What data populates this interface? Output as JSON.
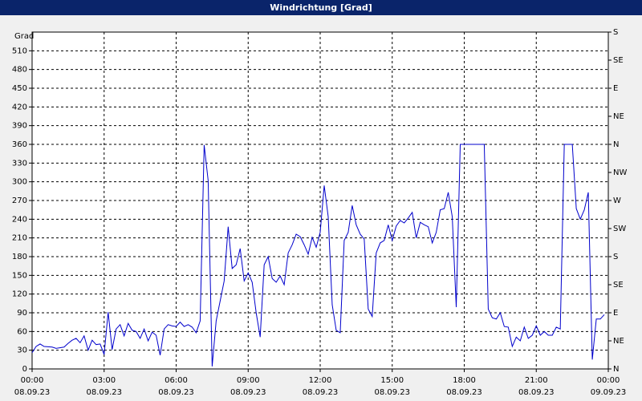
{
  "chart_data": {
    "type": "line",
    "title": "Windrichtung [Grad]",
    "y_label": "Grad",
    "color": "#0000cc",
    "grid": true,
    "x": [
      0,
      10,
      20,
      30,
      50,
      60,
      80,
      90,
      100,
      110,
      120,
      130,
      140,
      150,
      160,
      170,
      180,
      190,
      200,
      210,
      220,
      230,
      240,
      250,
      260,
      270,
      280,
      290,
      300,
      310,
      320,
      330,
      340,
      350,
      360,
      370,
      380,
      390,
      400,
      410,
      420,
      430,
      440,
      450,
      460,
      470,
      480,
      490,
      500,
      510,
      520,
      530,
      540,
      550,
      560,
      570,
      580,
      590,
      600,
      610,
      620,
      630,
      640,
      650,
      660,
      670,
      680,
      690,
      700,
      710,
      720,
      730,
      740,
      750,
      760,
      770,
      780,
      790,
      800,
      810,
      820,
      830,
      840,
      850,
      860,
      870,
      880,
      890,
      900,
      910,
      920,
      930,
      940,
      950,
      960,
      970,
      980,
      990,
      1000,
      1010,
      1020,
      1030,
      1040,
      1050,
      1060,
      1070,
      1120,
      1130,
      1140,
      1150,
      1160,
      1170,
      1180,
      1190,
      1200,
      1210,
      1220,
      1230,
      1240,
      1250,
      1260,
      1270,
      1280,
      1290,
      1300,
      1310,
      1320,
      1330,
      1350,
      1360,
      1370,
      1380,
      1390,
      1400,
      1410,
      1420,
      1430
    ],
    "values": [
      26,
      36,
      40,
      36,
      35,
      33,
      35,
      41,
      46,
      49,
      42,
      53,
      30,
      46,
      39,
      40,
      23,
      91,
      31,
      64,
      71,
      53,
      73,
      62,
      60,
      49,
      64,
      45,
      59,
      54,
      22,
      64,
      71,
      69,
      68,
      75,
      68,
      71,
      67,
      58,
      77,
      359,
      302,
      4,
      77,
      109,
      141,
      228,
      161,
      167,
      193,
      141,
      154,
      139,
      90,
      51,
      167,
      180,
      145,
      139,
      149,
      135,
      186,
      199,
      216,
      212,
      199,
      184,
      211,
      195,
      219,
      294,
      244,
      103,
      62,
      58,
      206,
      219,
      262,
      231,
      216,
      208,
      96,
      84,
      186,
      202,
      206,
      231,
      206,
      229,
      238,
      234,
      242,
      251,
      210,
      235,
      231,
      228,
      202,
      219,
      255,
      257,
      283,
      244,
      99,
      360,
      360,
      360,
      96,
      82,
      80,
      90,
      68,
      67,
      36,
      51,
      45,
      67,
      49,
      54,
      69,
      54,
      60,
      54,
      54,
      67,
      64,
      360,
      360,
      257,
      240,
      255,
      283,
      15,
      80,
      80,
      87
    ],
    "xlim": [
      0,
      1440
    ],
    "xticks": [
      {
        "value": 0,
        "label": "00:00"
      },
      {
        "value": 180,
        "label": "03:00"
      },
      {
        "value": 360,
        "label": "06:00"
      },
      {
        "value": 540,
        "label": "09:00"
      },
      {
        "value": 720,
        "label": "12:00"
      },
      {
        "value": 900,
        "label": "15:00"
      },
      {
        "value": 1080,
        "label": "18:00"
      },
      {
        "value": 1260,
        "label": "21:00"
      },
      {
        "value": 1440,
        "label": "00:00"
      }
    ],
    "xtick_dates": [
      "08.09.23",
      "08.09.23",
      "08.09.23",
      "08.09.23",
      "08.09.23",
      "08.09.23",
      "08.09.23",
      "08.09.23",
      "09.09.23"
    ],
    "ylim": [
      0,
      540
    ],
    "yticks": [
      0,
      30,
      60,
      90,
      120,
      150,
      180,
      210,
      240,
      270,
      300,
      330,
      360,
      390,
      420,
      450,
      480,
      510
    ],
    "y2lim": [
      0,
      540
    ],
    "y2ticks": [
      {
        "value": 0,
        "label": "N"
      },
      {
        "value": 45,
        "label": "NE"
      },
      {
        "value": 90,
        "label": "E"
      },
      {
        "value": 135,
        "label": "SE"
      },
      {
        "value": 180,
        "label": "S"
      },
      {
        "value": 225,
        "label": "SW"
      },
      {
        "value": 270,
        "label": "W"
      },
      {
        "value": 315,
        "label": "NW"
      },
      {
        "value": 360,
        "label": "N"
      },
      {
        "value": 405,
        "label": "NE"
      },
      {
        "value": 450,
        "label": "E"
      },
      {
        "value": 495,
        "label": "SE"
      },
      {
        "value": 540,
        "label": "S"
      }
    ]
  }
}
